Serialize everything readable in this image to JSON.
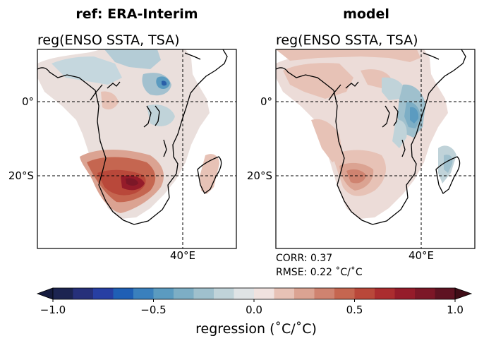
{
  "chart_data": [
    {
      "type": "heatmap",
      "panel_title": "ref: ERA-Interim",
      "title": "reg(ENSO SSTA, TSA)",
      "region": "Southern Africa",
      "lat_ticks": [
        "0°",
        "20°S"
      ],
      "lon_ticks": [
        "40°E"
      ],
      "gridlines": "dashed at 0°, 20°S and 40°E",
      "pattern": "strong positive regression (~0.7–0.9) over southern Africa around 20–28°S; weak negative values (~-0.3 to -0.5) near the equator in East Africa"
    },
    {
      "type": "heatmap",
      "panel_title": "model",
      "title": "reg(ENSO SSTA, TSA)",
      "region": "Southern Africa",
      "lat_ticks": [
        "0°",
        "20°S"
      ],
      "lon_ticks": [
        "40°E"
      ],
      "gridlines": "dashed at 0°, 20°S and 40°E",
      "pattern": "moderate positive regression (~0.3–0.5) over southwestern Africa; negative values (~-0.3 to -0.5) over East Africa near 0–10°S",
      "stats": {
        "corr": "CORR: 0.37",
        "rmse": "RMSE: 0.22 ˚C/˚C"
      }
    }
  ],
  "colorbar": {
    "label": "regression (˚C/˚C)",
    "vmin": -1.0,
    "vmax": 1.0,
    "extend": "both",
    "tick_values": [
      -1.0,
      -0.5,
      0.0,
      0.5,
      1.0
    ],
    "tick_labels": [
      "−1.0",
      "−0.5",
      "0.0",
      "0.5",
      "1.0"
    ],
    "levels": [
      -1.0,
      -0.9,
      -0.8,
      -0.7,
      -0.6,
      -0.5,
      -0.4,
      -0.3,
      -0.2,
      -0.1,
      0.0,
      0.1,
      0.2,
      0.3,
      0.4,
      0.5,
      0.6,
      0.7,
      0.8,
      0.9,
      1.0
    ],
    "colors": [
      "#1c2451",
      "#26307a",
      "#273fa3",
      "#1f5fb5",
      "#3a80bd",
      "#5b9bc0",
      "#7daec5",
      "#9fc0cd",
      "#c0d3d9",
      "#dfe3e5",
      "#f0e2df",
      "#e7c2b6",
      "#dba392",
      "#cf8370",
      "#c56650",
      "#b9483a",
      "#ab2d2f",
      "#951c2a",
      "#7c1727",
      "#5e1322"
    ],
    "under_color": "#151b3e",
    "over_color": "#3f0d17"
  }
}
